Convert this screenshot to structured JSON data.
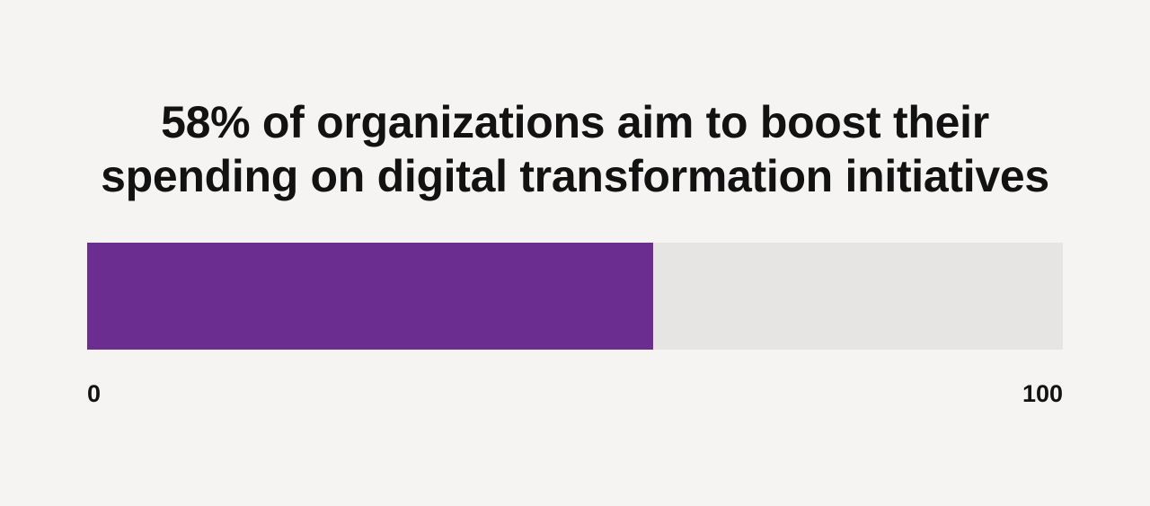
{
  "title": {
    "line1": "58% of organizations aim to boost their",
    "line2": "spending on digital transformation initiatives"
  },
  "axis": {
    "min_label": "0",
    "max_label": "100"
  },
  "colors": {
    "background": "#F5F4F2",
    "bar_fill": "#6C2D90",
    "bar_track": "#E6E5E4",
    "text": "#121212"
  },
  "chart_data": {
    "type": "bar",
    "orientation": "horizontal",
    "title": "58% of organizations aim to boost their spending on digital transformation initiatives",
    "values": [
      58
    ],
    "xlim": [
      0,
      100
    ],
    "tick_labels": [
      "0",
      "100"
    ],
    "xlabel": "",
    "ylabel": "",
    "grid": false,
    "legend": false,
    "unit": "percent"
  }
}
